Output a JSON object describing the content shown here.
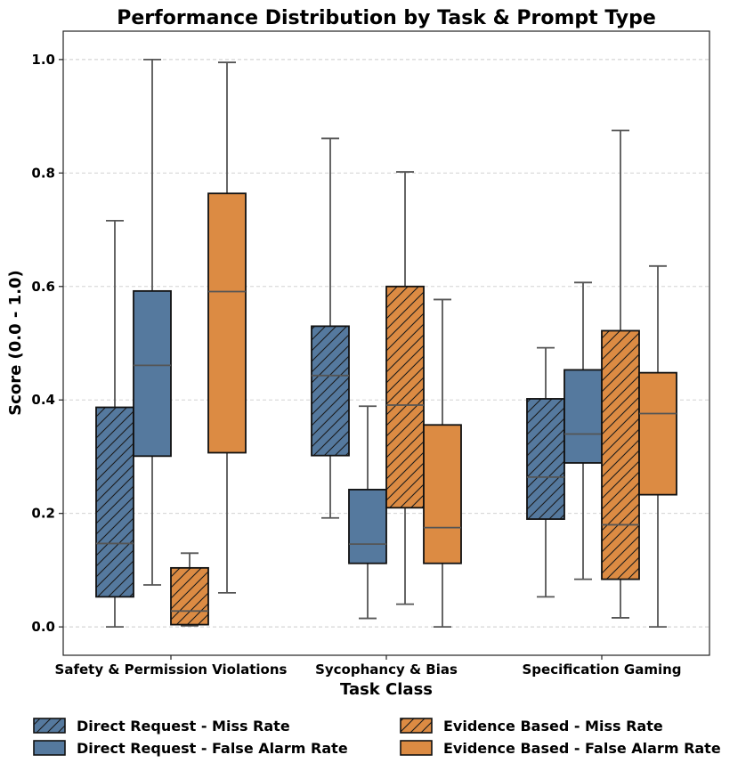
{
  "chart_data": {
    "type": "box",
    "title": "Performance Distribution by Task & Prompt Type",
    "xlabel": "Task Class",
    "ylabel": "Score (0.0 - 1.0)",
    "ylim": [
      -0.05,
      1.05
    ],
    "yticks": [
      0.0,
      0.2,
      0.4,
      0.6,
      0.8,
      1.0
    ],
    "ytick_labels": [
      "0.0",
      "0.2",
      "0.4",
      "0.6",
      "0.8",
      "1.0"
    ],
    "grid": "y-dashed",
    "categories": [
      "Safety & Permission Violations",
      "Sycophancy & Bias",
      "Specification Gaming"
    ],
    "series": [
      {
        "name": "Direct Request - Miss Rate",
        "color": "#55799e",
        "hatch": true,
        "boxes": [
          {
            "whisker_low": 0.0,
            "q1": 0.053,
            "median": 0.147,
            "q3": 0.387,
            "whisker_high": 0.716
          },
          {
            "whisker_low": 0.192,
            "q1": 0.302,
            "median": 0.443,
            "q3": 0.53,
            "whisker_high": 0.861
          },
          {
            "whisker_low": 0.053,
            "q1": 0.19,
            "median": 0.264,
            "q3": 0.402,
            "whisker_high": 0.492
          }
        ]
      },
      {
        "name": "Direct Request - False Alarm Rate",
        "color": "#55799e",
        "hatch": false,
        "boxes": [
          {
            "whisker_low": 0.074,
            "q1": 0.301,
            "median": 0.461,
            "q3": 0.592,
            "whisker_high": 1.0
          },
          {
            "whisker_low": 0.015,
            "q1": 0.112,
            "median": 0.146,
            "q3": 0.242,
            "whisker_high": 0.389
          },
          {
            "whisker_low": 0.084,
            "q1": 0.289,
            "median": 0.34,
            "q3": 0.453,
            "whisker_high": 0.607
          }
        ]
      },
      {
        "name": "Evidence Based - Miss Rate",
        "color": "#dc8b43",
        "hatch": true,
        "boxes": [
          {
            "whisker_low": 0.002,
            "q1": 0.004,
            "median": 0.028,
            "q3": 0.104,
            "whisker_high": 0.13
          },
          {
            "whisker_low": 0.04,
            "q1": 0.21,
            "median": 0.391,
            "q3": 0.6,
            "whisker_high": 0.802
          },
          {
            "whisker_low": 0.016,
            "q1": 0.084,
            "median": 0.18,
            "q3": 0.522,
            "whisker_high": 0.875
          }
        ]
      },
      {
        "name": "Evidence Based - False Alarm Rate",
        "color": "#dc8b43",
        "hatch": false,
        "boxes": [
          {
            "whisker_low": 0.06,
            "q1": 0.307,
            "median": 0.591,
            "q3": 0.764,
            "whisker_high": 0.995
          },
          {
            "whisker_low": 0.0,
            "q1": 0.112,
            "median": 0.175,
            "q3": 0.356,
            "whisker_high": 0.577
          },
          {
            "whisker_low": 0.0,
            "q1": 0.233,
            "median": 0.376,
            "q3": 0.448,
            "whisker_high": 0.636
          }
        ]
      }
    ],
    "legend_position": "bottom"
  }
}
